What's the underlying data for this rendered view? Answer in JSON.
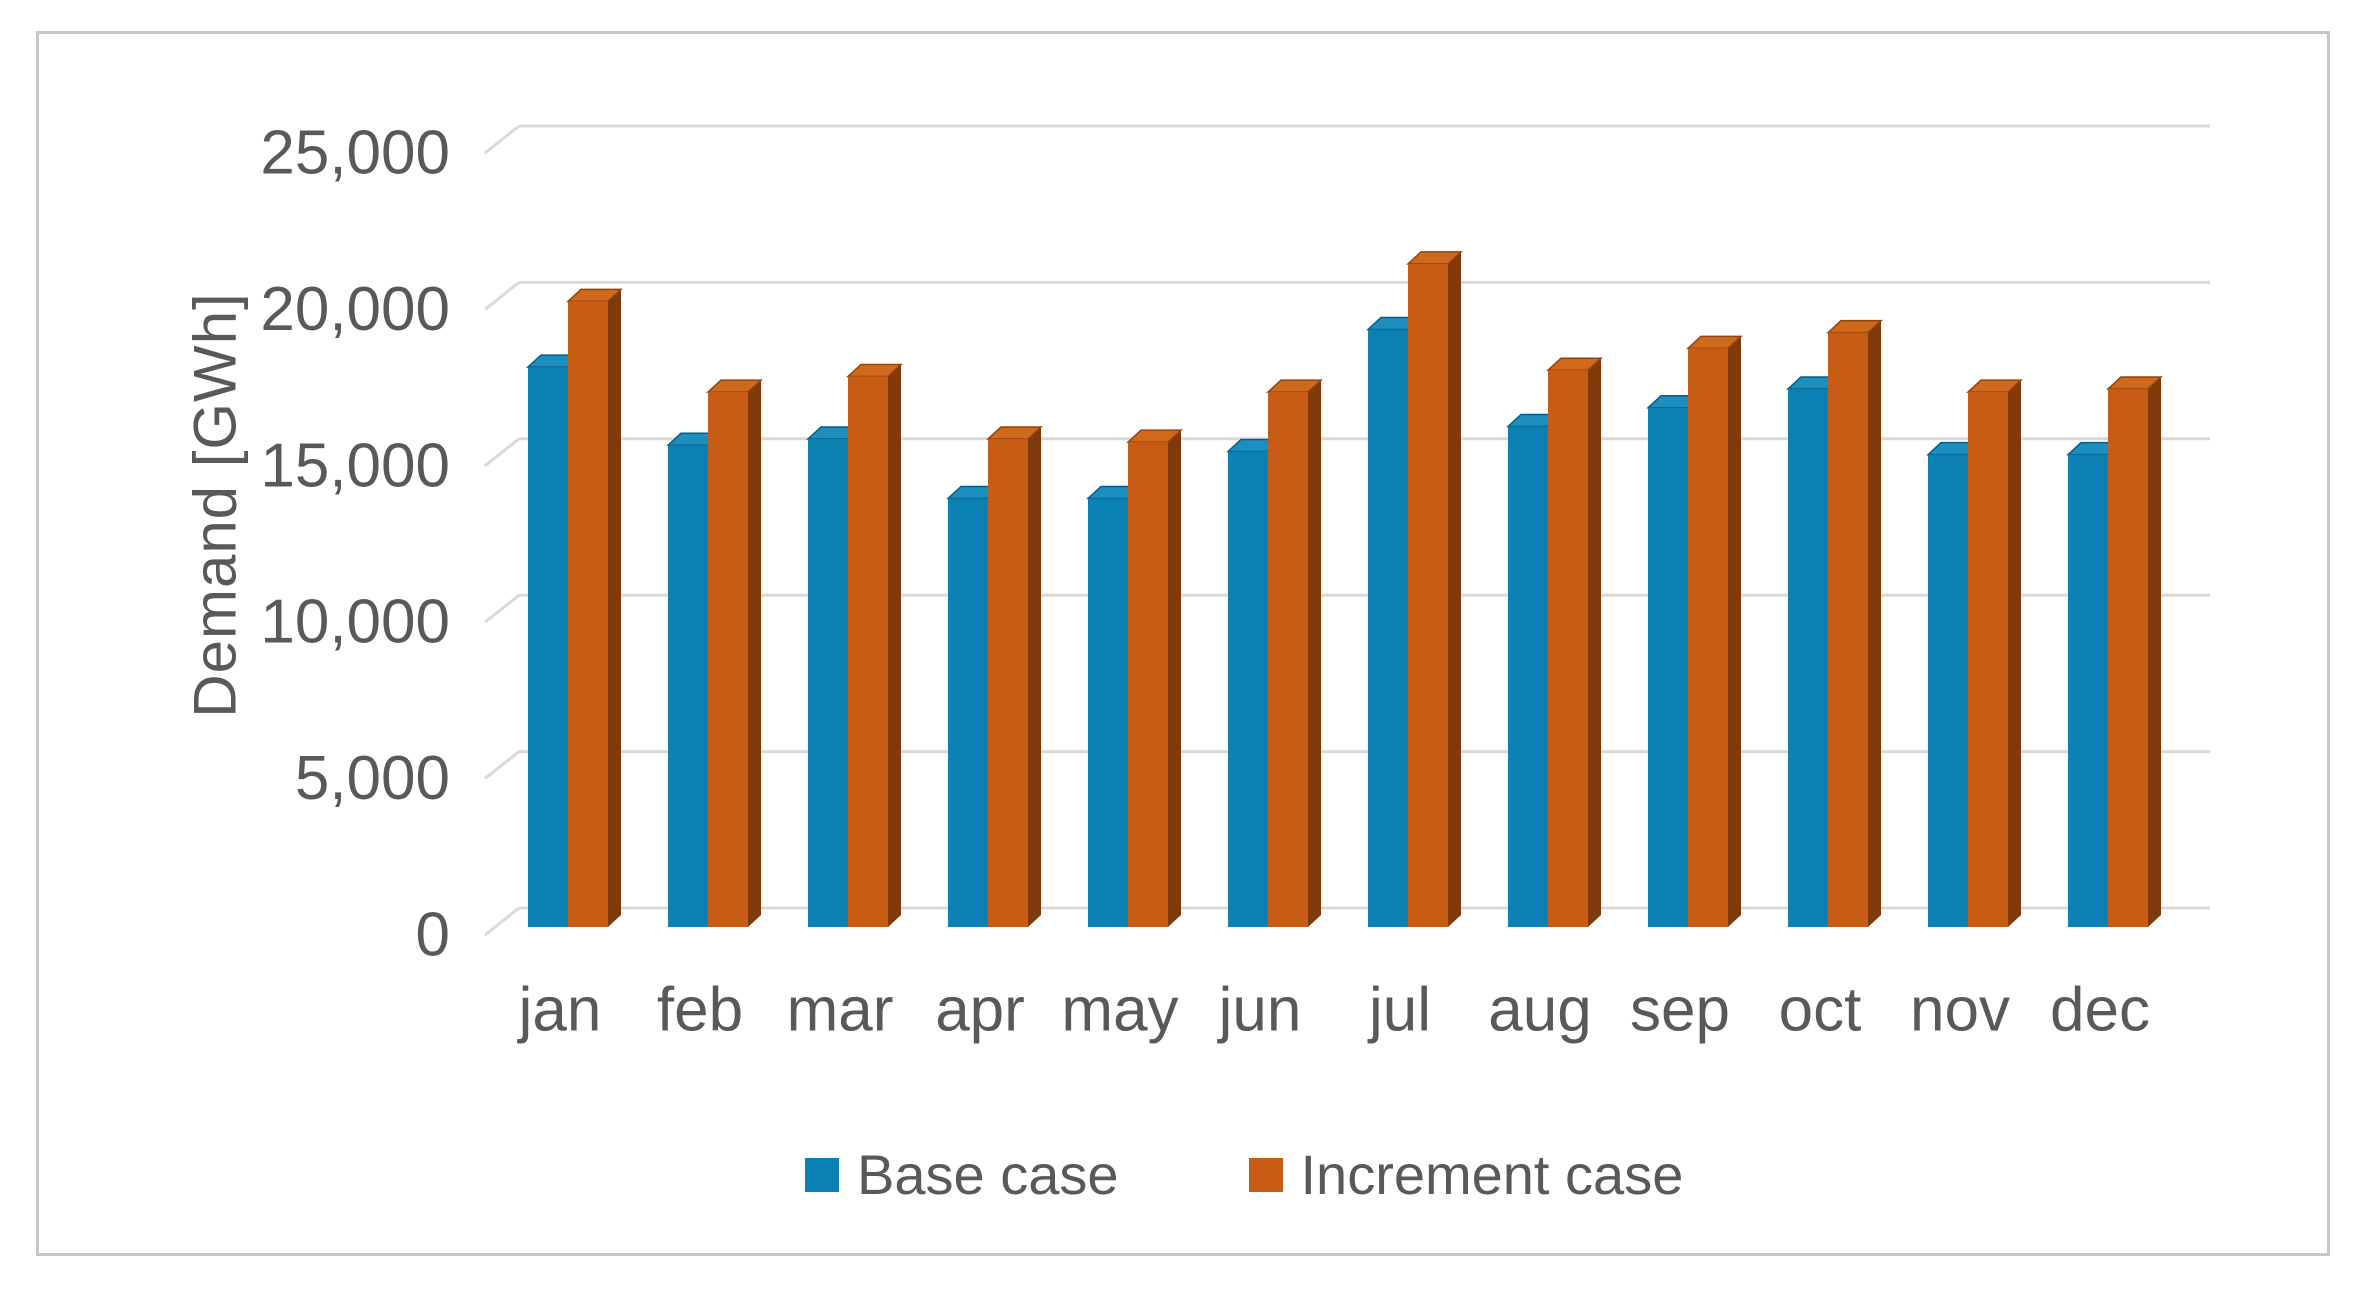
{
  "chart_data": {
    "type": "bar",
    "subtype": "3d-clustered-column",
    "title": "",
    "xlabel": "",
    "ylabel": "Demand [GWh]",
    "categories": [
      "jan",
      "feb",
      "mar",
      "apr",
      "may",
      "jun",
      "jul",
      "aug",
      "sep",
      "oct",
      "nov",
      "dec"
    ],
    "series": [
      {
        "name": "Base case",
        "color": "#0b80b3",
        "values": [
          17900,
          15400,
          15600,
          13700,
          13700,
          15200,
          19100,
          16000,
          16600,
          17200,
          15100,
          15100
        ]
      },
      {
        "name": "Increment case",
        "color": "#c85c14",
        "values": [
          20000,
          17100,
          17600,
          15600,
          15500,
          17100,
          21200,
          17800,
          18500,
          19000,
          17100,
          17200
        ]
      }
    ],
    "ylim": [
      0,
      25000
    ],
    "ytick_step": 5000,
    "ytick_labels": [
      "0",
      "5,000",
      "10,000",
      "15,000",
      "20,000",
      "25,000"
    ],
    "grid": true,
    "legend_position": "bottom"
  },
  "legend": {
    "items": [
      {
        "label": "Base case",
        "color": "#0b80b3"
      },
      {
        "label": "Increment case",
        "color": "#c85c14"
      }
    ]
  },
  "colors": {
    "text": "#595959",
    "gridline": "#d9d9d9",
    "frame": "#c6c6c6",
    "blue_front": "#0b80b3",
    "blue_top": "#1d8fbf",
    "blue_edge": "#075e84",
    "orange_front": "#c85c14",
    "orange_top": "#cf691c",
    "orange_side": "#803908",
    "orange_edge": "#93430e"
  }
}
